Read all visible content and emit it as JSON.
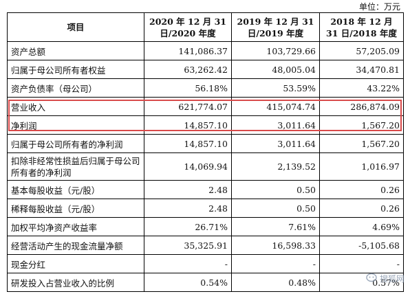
{
  "unit_label": "单位：万元",
  "headers": [
    "项目",
    "2020 年 12 月 31 日/2020 年度",
    "2019 年 12 月 31 日/2019 年度",
    "2018 年 12 月 31 日/2018 年度"
  ],
  "rows": [
    {
      "label": "资产总额",
      "values": [
        "141,086.37",
        "103,729.66",
        "57,205.09"
      ]
    },
    {
      "label": "归属于母公司所有者权益",
      "values": [
        "63,262.42",
        "48,005.04",
        "34,470.81"
      ]
    },
    {
      "label": "资产负债率（母公司）",
      "values": [
        "56.18%",
        "53.59%",
        "43.22%"
      ]
    },
    {
      "label": "营业收入",
      "values": [
        "621,774.07",
        "415,074.74",
        "286,874.09"
      ]
    },
    {
      "label": "净利润",
      "values": [
        "14,857.10",
        "3,011.64",
        "1,567.20"
      ]
    },
    {
      "label": "归属于母公司所有者的净利润",
      "values": [
        "14,857.10",
        "3,011.64",
        "1,567.20"
      ]
    },
    {
      "label": "扣除非经常性损益后归属于母公司所有者的净利润",
      "values": [
        "14,069.94",
        "2,139.52",
        "1,016.97"
      ]
    },
    {
      "label": "基本每股收益（元/股）",
      "values": [
        "2.48",
        "0.50",
        "0.26"
      ]
    },
    {
      "label": "稀释每股收益（元/股）",
      "values": [
        "2.48",
        "0.50",
        "0.26"
      ]
    },
    {
      "label": "加权平均净资产收益率",
      "values": [
        "26.71%",
        "7.61%",
        "4.69%"
      ]
    },
    {
      "label": "经营活动产生的现金流量净额",
      "values": [
        "35,325.91",
        "16,598.33",
        "-5,105.68"
      ]
    },
    {
      "label": "现金分红",
      "values": [
        "-",
        "-",
        "-"
      ]
    },
    {
      "label": "研发投入占营业收入的比例",
      "values": [
        "0.54%",
        "0.48%",
        "0.57%"
      ]
    }
  ],
  "watermark": "搜狐网",
  "highlight_color": "#d94a4a"
}
